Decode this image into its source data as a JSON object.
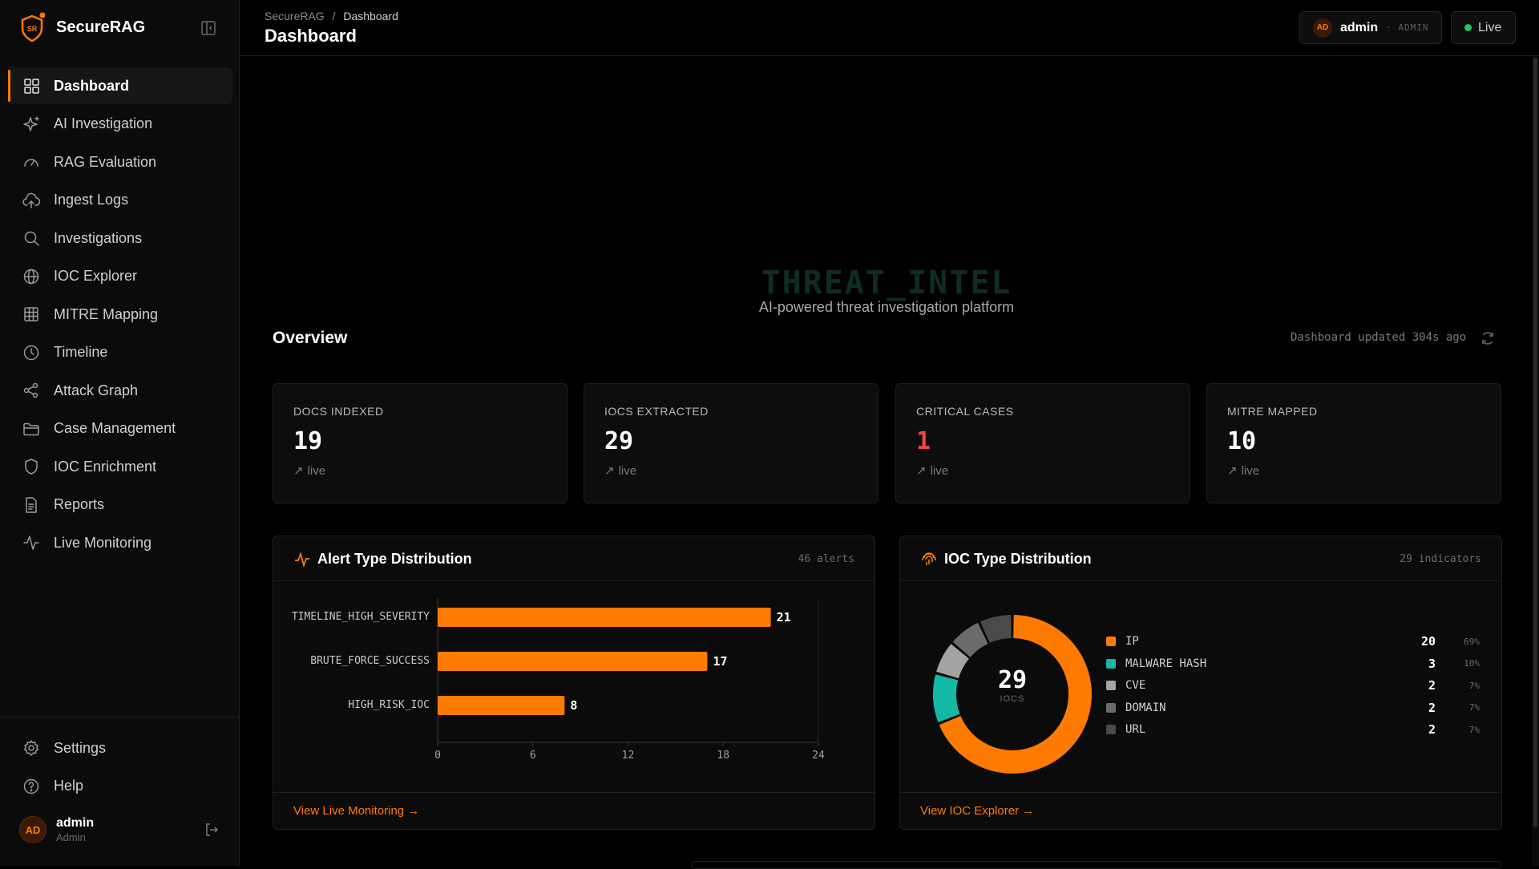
{
  "brand": {
    "name": "SecureRAG",
    "logo_text": "SR"
  },
  "sidebar": {
    "items": [
      {
        "label": "Dashboard",
        "icon": "grid-icon",
        "active": true
      },
      {
        "label": "AI Investigation",
        "icon": "sparkles-icon"
      },
      {
        "label": "RAG Evaluation",
        "icon": "gauge-icon"
      },
      {
        "label": "Ingest Logs",
        "icon": "cloud-upload-icon"
      },
      {
        "label": "Investigations",
        "icon": "search-icon"
      },
      {
        "label": "IOC Explorer",
        "icon": "globe-icon"
      },
      {
        "label": "MITRE Mapping",
        "icon": "table-grid-icon"
      },
      {
        "label": "Timeline",
        "icon": "clock-icon"
      },
      {
        "label": "Attack Graph",
        "icon": "share-icon"
      },
      {
        "label": "Case Management",
        "icon": "folder-icon"
      },
      {
        "label": "IOC Enrichment",
        "icon": "shield-icon"
      },
      {
        "label": "Reports",
        "icon": "document-icon"
      },
      {
        "label": "Live Monitoring",
        "icon": "activity-icon"
      }
    ],
    "bottom": [
      {
        "label": "Settings",
        "icon": "gear-icon"
      },
      {
        "label": "Help",
        "icon": "help-circle-icon"
      }
    ],
    "user": {
      "initials": "AD",
      "name": "admin",
      "role": "Admin"
    }
  },
  "header": {
    "breadcrumb_root": "SecureRAG",
    "breadcrumb_sep": "/",
    "breadcrumb_current": "Dashboard",
    "title": "Dashboard",
    "user_initials": "AD",
    "user_name": "admin",
    "user_role": "· ADMIN",
    "status": "Live",
    "status_color": "#22c55e"
  },
  "hero": {
    "title": "THREAT_INTEL",
    "subtitle": "AI-powered threat investigation platform"
  },
  "overview": {
    "title": "Overview",
    "updated": "Dashboard updated 304s ago"
  },
  "stats": [
    {
      "label": "DOCS INDEXED",
      "value": "19",
      "trend": "live"
    },
    {
      "label": "IOCS EXTRACTED",
      "value": "29",
      "trend": "live"
    },
    {
      "label": "CRITICAL CASES",
      "value": "1",
      "trend": "live"
    },
    {
      "label": "MITRE MAPPED",
      "value": "10",
      "trend": "live"
    }
  ],
  "alert_panel": {
    "title": "Alert Type Distribution",
    "meta": "46 alerts",
    "link": "View Live Monitoring →"
  },
  "ioc_panel": {
    "title": "IOC Type Distribution",
    "meta": "29 indicators",
    "center_value": "29",
    "center_label": "IOCS",
    "link": "View IOC Explorer →"
  },
  "chart_data": [
    {
      "type": "bar",
      "orientation": "horizontal",
      "categories": [
        "TIMELINE_HIGH_SEVERITY",
        "BRUTE_FORCE_SUCCESS",
        "HIGH_RISK_IOC"
      ],
      "values": [
        21,
        17,
        8
      ],
      "xlim": [
        0,
        24
      ],
      "xticks": [
        0,
        6,
        12,
        18,
        24
      ],
      "color": "#ff7a00"
    },
    {
      "type": "pie",
      "donut": true,
      "labels": [
        "IP",
        "MALWARE HASH",
        "CVE",
        "DOMAIN",
        "URL"
      ],
      "values": [
        20,
        3,
        2,
        2,
        2
      ],
      "percents": [
        "69%",
        "10%",
        "7%",
        "7%",
        "7%"
      ],
      "colors": [
        "#ff7a00",
        "#14b8a6",
        "#a3a3a3",
        "#6b6b6b",
        "#4a4a4a"
      ]
    }
  ]
}
